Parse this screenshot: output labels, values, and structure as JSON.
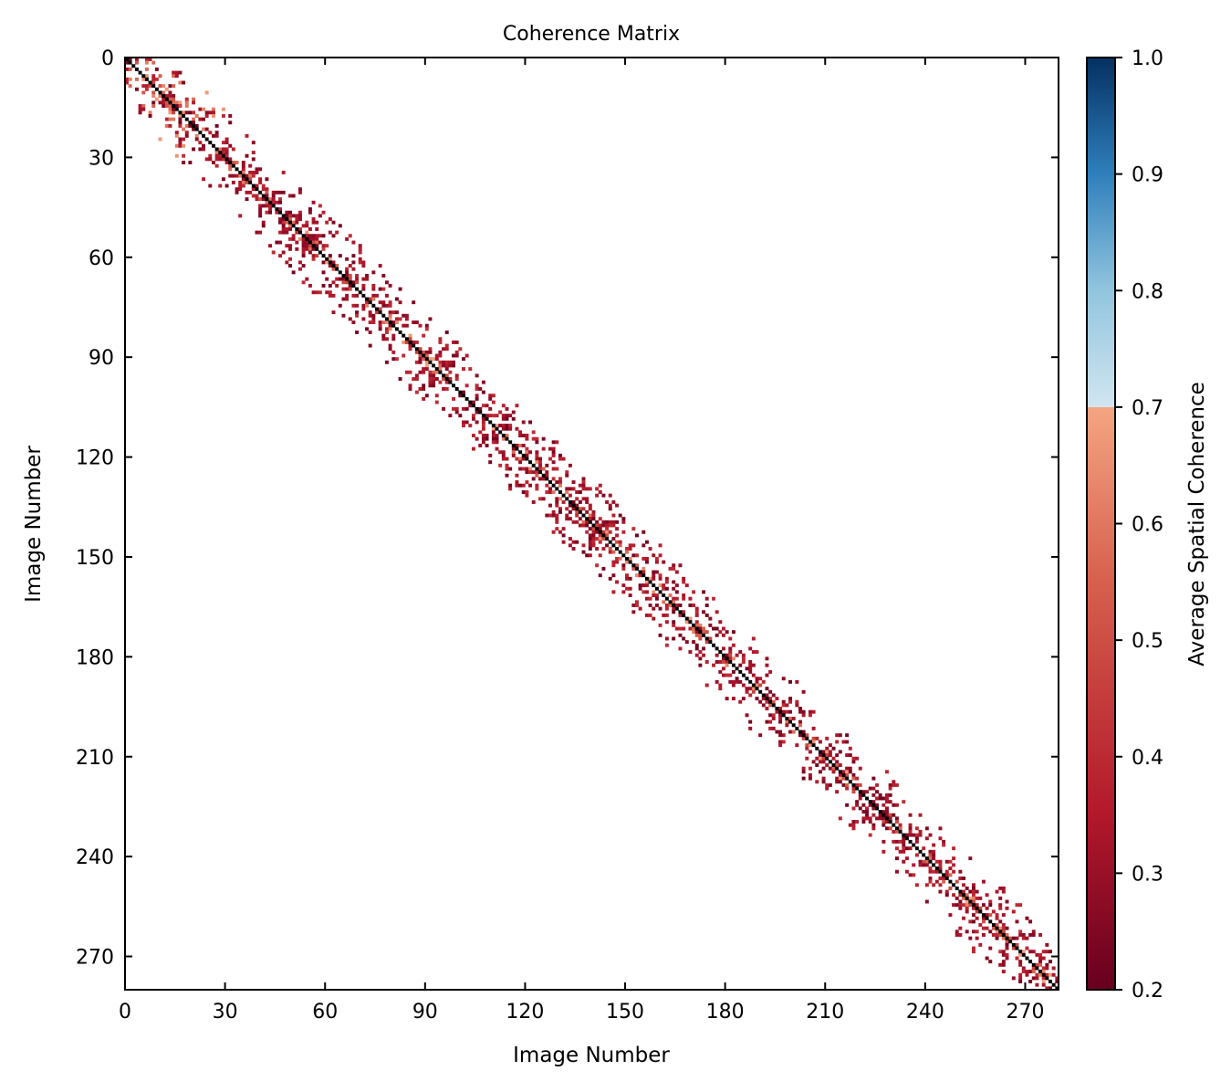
{
  "chart_data": {
    "type": "heatmap",
    "title": "Coherence Matrix",
    "xlabel": "Image Number",
    "ylabel": "Image Number",
    "n": 280,
    "xlim": [
      0,
      280
    ],
    "ylim": [
      280,
      0
    ],
    "xticks": [
      0,
      30,
      60,
      90,
      120,
      150,
      180,
      210,
      240,
      270
    ],
    "yticks": [
      0,
      30,
      60,
      90,
      120,
      150,
      180,
      210,
      240,
      270
    ],
    "diagonal_value": 1.0,
    "band_half_width": 14,
    "off_diagonal_value_range": [
      0.2,
      0.7
    ],
    "seed": 12345,
    "grid": false,
    "colorbar": {
      "label": "Average Spatial Coherence",
      "range": [
        0.2,
        1.0
      ],
      "ticks": [
        "0.2",
        "0.3",
        "0.4",
        "0.5",
        "0.6",
        "0.7",
        "0.8",
        "0.9",
        "1.0"
      ],
      "low_stops": [
        [
          0.2,
          "#67001f"
        ],
        [
          0.35,
          "#b2182b"
        ],
        [
          0.55,
          "#d6604d"
        ],
        [
          0.7,
          "#f4a582"
        ]
      ],
      "high_stops": [
        [
          0.7,
          "#d1e5f0"
        ],
        [
          0.8,
          "#92c5de"
        ],
        [
          0.9,
          "#2f7fbc"
        ],
        [
          1.0,
          "#053061"
        ]
      ]
    }
  }
}
